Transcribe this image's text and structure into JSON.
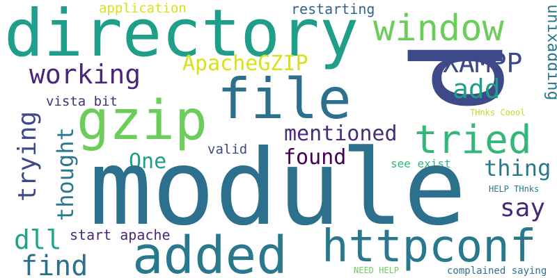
{
  "word_cloud": {
    "background": "#ffffff",
    "words": [
      {
        "text": "directory",
        "color": "#1f9e89"
      },
      {
        "text": "window",
        "color": "#6ccd5a"
      },
      {
        "text": "application",
        "color": "#d8e219"
      },
      {
        "text": "restarting",
        "color": "#33638d"
      },
      {
        "text": "unixadding",
        "color": "#2a788e"
      },
      {
        "text": "p",
        "color": "#3e4989"
      },
      {
        "text": "XAMPP",
        "color": "#3e4989"
      },
      {
        "text": "ApacheGZIP",
        "color": "#d8e219"
      },
      {
        "text": "working",
        "color": "#482878"
      },
      {
        "text": "add",
        "color": "#1f9e89"
      },
      {
        "text": "file",
        "color": "#2d708e"
      },
      {
        "text": "gzip",
        "color": "#6ccd5a"
      },
      {
        "text": "tried",
        "color": "#35b779"
      },
      {
        "text": "trying",
        "color": "#3e4989"
      },
      {
        "text": "vista bit",
        "color": "#472d7b"
      },
      {
        "text": "mentioned",
        "color": "#472d7b"
      },
      {
        "text": "THnks Coool",
        "color": "#bddf26"
      },
      {
        "text": "thought",
        "color": "#2a788e"
      },
      {
        "text": "One",
        "color": "#1f9e89"
      },
      {
        "text": "valid",
        "color": "#3e4989"
      },
      {
        "text": "found",
        "color": "#440154"
      },
      {
        "text": "see exist",
        "color": "#35b779"
      },
      {
        "text": "thing",
        "color": "#2a788e"
      },
      {
        "text": "module",
        "color": "#2d708e"
      },
      {
        "text": "say",
        "color": "#482878"
      },
      {
        "text": "HELP THnks",
        "color": "#2a788e"
      },
      {
        "text": "dll",
        "color": "#20a386"
      },
      {
        "text": "start apache",
        "color": "#482878"
      },
      {
        "text": "added",
        "color": "#2a788e"
      },
      {
        "text": "httpconf",
        "color": "#2a788e"
      },
      {
        "text": "find",
        "color": "#2d708e"
      },
      {
        "text": "NEED HELP",
        "color": "#6ccd5a"
      },
      {
        "text": "complained saying",
        "color": "#2d708e"
      }
    ]
  }
}
